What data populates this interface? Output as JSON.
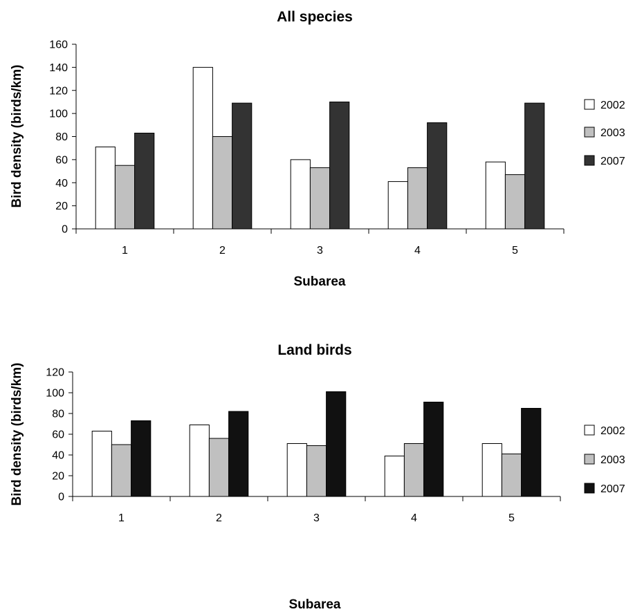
{
  "chart_data": [
    {
      "type": "bar",
      "title": "All species",
      "xlabel": "Subarea",
      "ylabel": "Bird density (birds/km)",
      "categories": [
        "1",
        "2",
        "3",
        "4",
        "5"
      ],
      "ylim": [
        0,
        160
      ],
      "yticks": [
        0,
        20,
        40,
        60,
        80,
        100,
        120,
        140,
        160
      ],
      "grid": false,
      "legend_position": "right",
      "series": [
        {
          "name": "2002",
          "color": "#ffffff",
          "values": [
            71,
            140,
            60,
            41,
            58
          ]
        },
        {
          "name": "2003",
          "color": "#c0c0c0",
          "values": [
            55,
            80,
            53,
            53,
            47
          ]
        },
        {
          "name": "2007",
          "color": "#333333",
          "values": [
            83,
            109,
            110,
            92,
            109
          ]
        }
      ]
    },
    {
      "type": "bar",
      "title": "Land birds",
      "xlabel": "Subarea",
      "ylabel": "Bird density (birds/km)",
      "categories": [
        "1",
        "2",
        "3",
        "4",
        "5"
      ],
      "ylim": [
        0,
        120
      ],
      "yticks": [
        0,
        20,
        40,
        60,
        80,
        100,
        120
      ],
      "grid": false,
      "legend_position": "right",
      "series": [
        {
          "name": "2002",
          "color": "#ffffff",
          "values": [
            63,
            69,
            51,
            39,
            51
          ]
        },
        {
          "name": "2003",
          "color": "#c0c0c0",
          "values": [
            50,
            56,
            49,
            51,
            41
          ]
        },
        {
          "name": "2007",
          "color": "#111111",
          "values": [
            73,
            82,
            101,
            91,
            85
          ]
        }
      ]
    }
  ]
}
